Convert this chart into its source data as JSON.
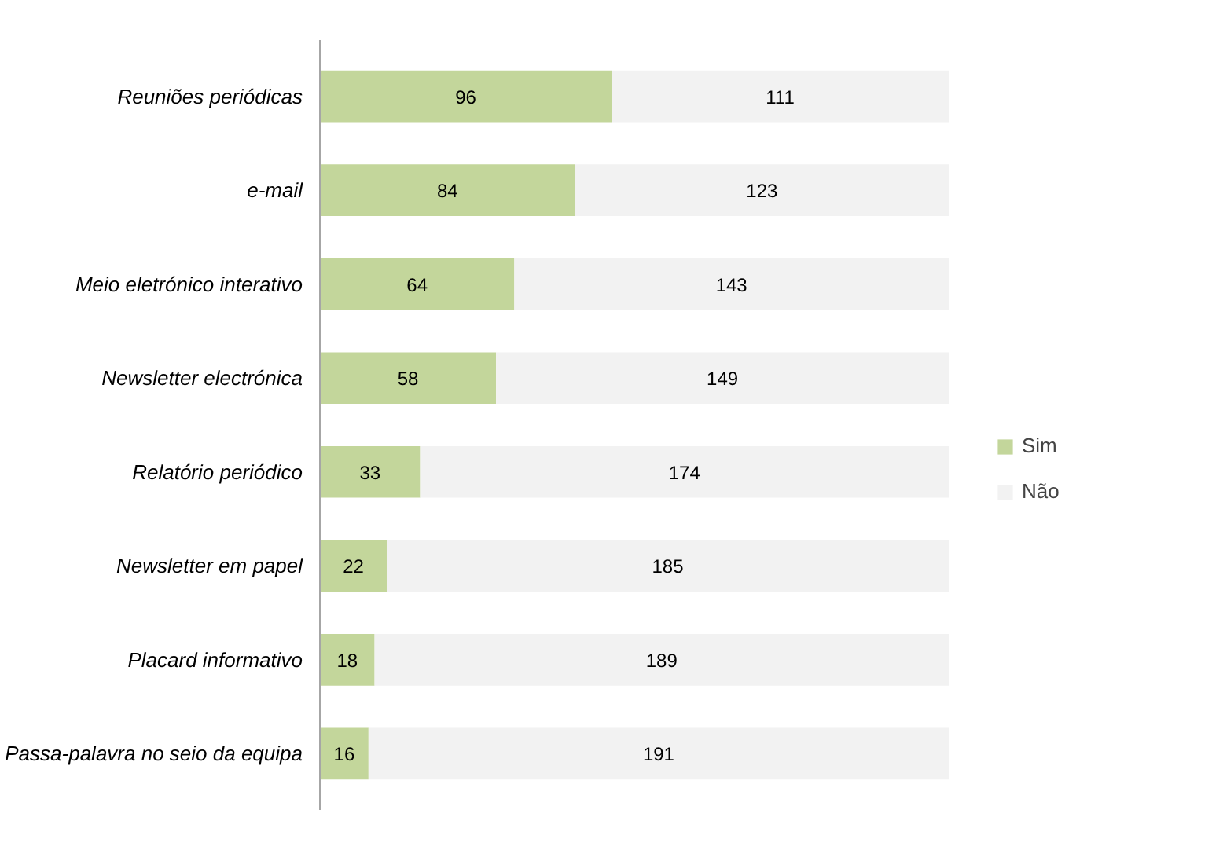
{
  "chart_data": {
    "type": "bar",
    "orientation": "horizontal",
    "stacked": true,
    "data_labels": true,
    "legend": "right",
    "grid": false,
    "categories": [
      "Reuniões periódicas",
      "e-mail",
      "Meio eletrónico interativo",
      "Newsletter electrónica",
      "Relatório periódico",
      "Newsletter em papel",
      "Placard informativo",
      "Passa-palavra no seio da equipa"
    ],
    "series": [
      {
        "name": "Sim",
        "color": "#c3d69b",
        "values": [
          96,
          84,
          64,
          58,
          33,
          22,
          18,
          16
        ]
      },
      {
        "name": "Não",
        "color": "#f2f2f2",
        "values": [
          111,
          123,
          143,
          149,
          174,
          185,
          189,
          191
        ]
      }
    ]
  }
}
